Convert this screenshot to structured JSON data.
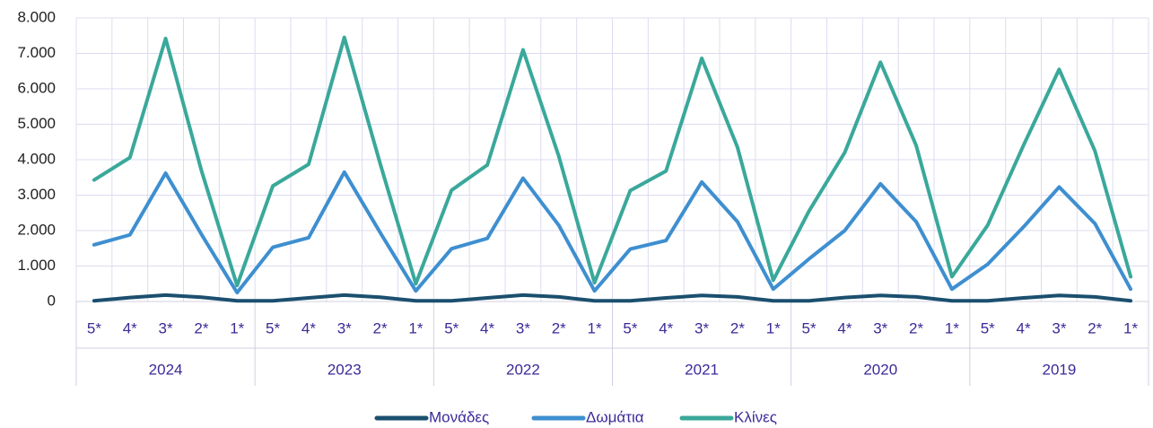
{
  "chart_data": {
    "type": "line",
    "categories": [
      "5*",
      "4*",
      "3*",
      "2*",
      "1*",
      "5*",
      "4*",
      "3*",
      "2*",
      "1*",
      "5*",
      "4*",
      "3*",
      "2*",
      "1*",
      "5*",
      "4*",
      "3*",
      "2*",
      "1*",
      "5*",
      "4*",
      "3*",
      "2*",
      "1*",
      "5*",
      "4*",
      "3*",
      "2*",
      "1*"
    ],
    "category_groups": [
      "2024",
      "2023",
      "2022",
      "2021",
      "2020",
      "2019"
    ],
    "series": [
      {
        "name": "Μονάδες",
        "color": "#1b4f6e",
        "values": [
          20,
          110,
          180,
          120,
          20,
          20,
          100,
          180,
          120,
          20,
          20,
          100,
          180,
          130,
          20,
          20,
          100,
          170,
          130,
          20,
          20,
          110,
          170,
          130,
          20,
          20,
          100,
          170,
          130,
          20
        ]
      },
      {
        "name": "Δωμάτια",
        "color": "#3e8fd0",
        "values": [
          1600,
          1880,
          3620,
          1900,
          250,
          1530,
          1800,
          3650,
          1950,
          300,
          1490,
          1780,
          3480,
          2150,
          300,
          1480,
          1720,
          3370,
          2250,
          350,
          1200,
          2000,
          3320,
          2250,
          350,
          1050,
          2100,
          3230,
          2200,
          350
        ]
      },
      {
        "name": "Κλίνες",
        "color": "#3aa89a",
        "values": [
          3430,
          4060,
          7420,
          3700,
          450,
          3260,
          3870,
          7450,
          3900,
          500,
          3140,
          3850,
          7100,
          4100,
          530,
          3130,
          3680,
          6860,
          4350,
          600,
          2550,
          4200,
          6750,
          4400,
          700,
          2150,
          4400,
          6550,
          4250,
          700
        ]
      }
    ],
    "ylim": [
      0,
      8000
    ],
    "yticks": [
      0,
      {
        "value": 1000,
        "label": "1.000"
      },
      {
        "value": 2000,
        "label": "2.000"
      },
      {
        "value": 3000,
        "label": "3.000"
      },
      {
        "value": 4000,
        "label": "4.000"
      },
      {
        "value": 5000,
        "label": "5.000"
      },
      {
        "value": 6000,
        "label": "6.000"
      },
      {
        "value": 7000,
        "label": "7.000"
      },
      {
        "value": 8000,
        "label": "8.000"
      }
    ],
    "grid": true,
    "legend": "bottom"
  }
}
